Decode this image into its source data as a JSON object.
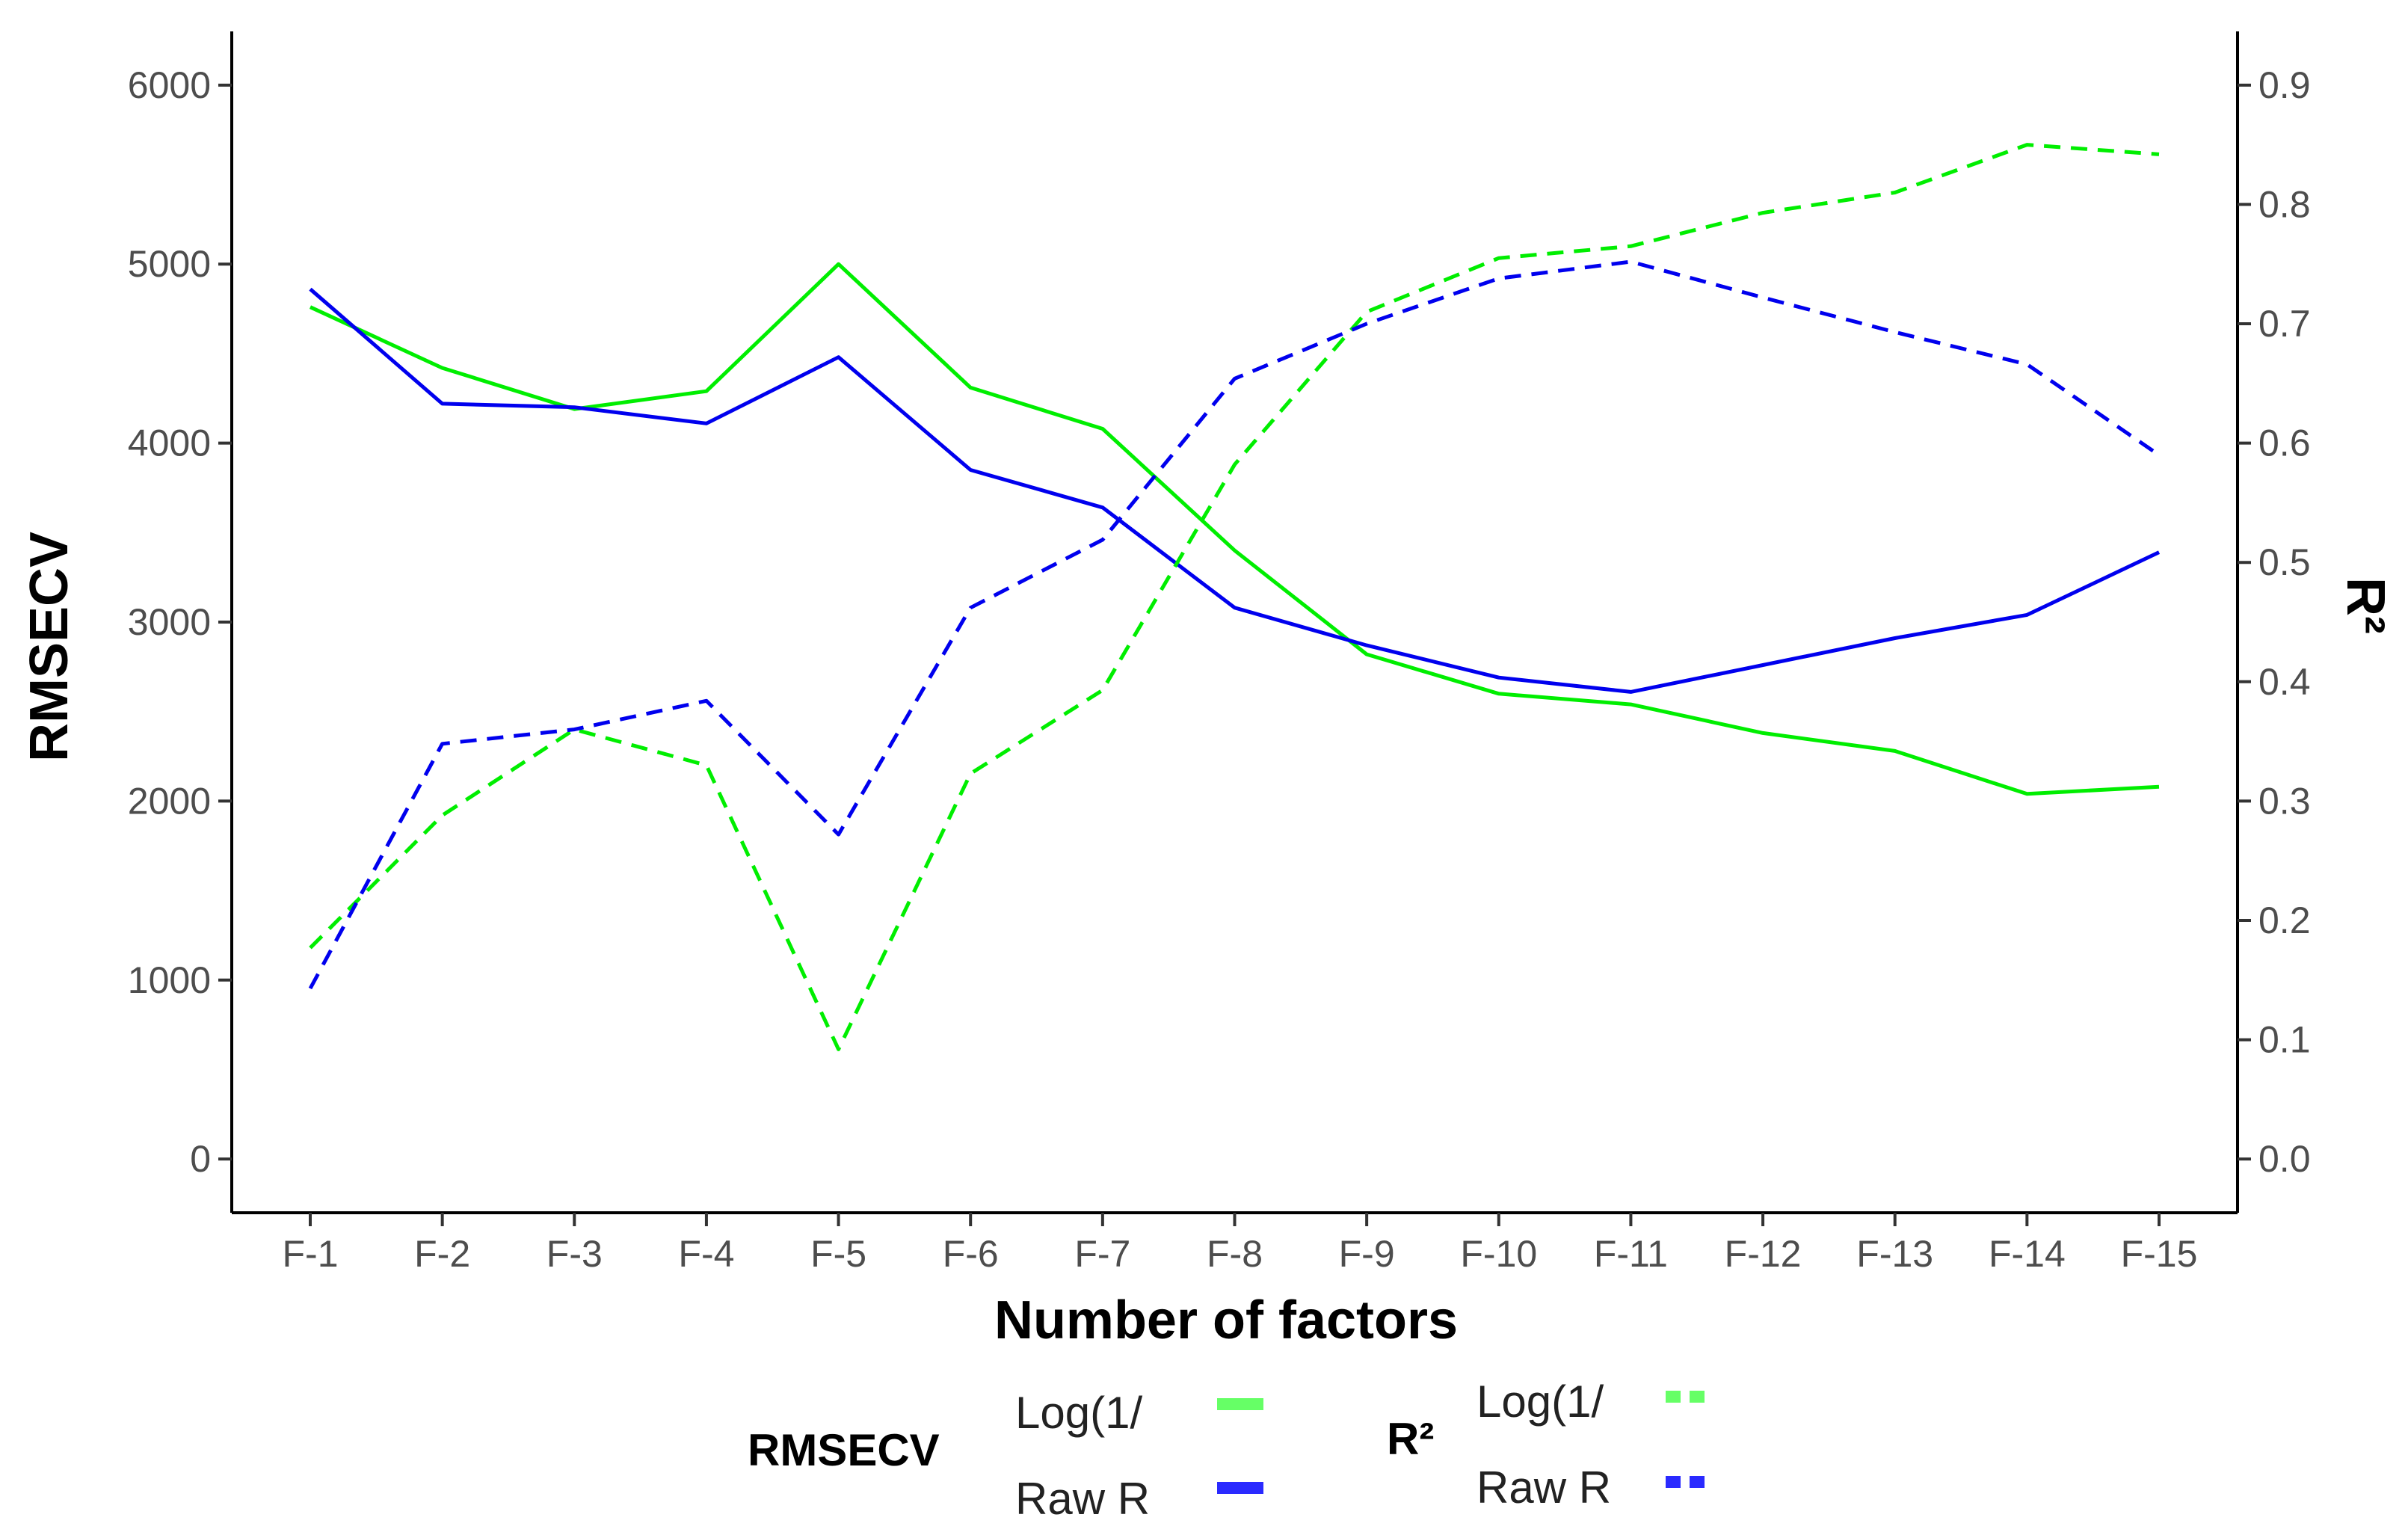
{
  "chart_data": {
    "type": "line",
    "xlabel": "Number of factors",
    "ylabel_left": "RMSECV",
    "ylabel_right": "R²",
    "categories": [
      "F-1",
      "F-2",
      "F-3",
      "F-4",
      "F-5",
      "F-6",
      "F-7",
      "F-8",
      "F-9",
      "F-10",
      "F-11",
      "F-12",
      "F-13",
      "F-14",
      "F-15"
    ],
    "ylim_left": [
      -300,
      6300
    ],
    "yticks_left": [
      0,
      1000,
      2000,
      3000,
      4000,
      5000,
      6000
    ],
    "ylim_right": [
      -0.045,
      0.945
    ],
    "yticks_right": [
      "0.0",
      "0.1",
      "0.2",
      "0.3",
      "0.4",
      "0.5",
      "0.6",
      "0.7",
      "0.8",
      "0.9"
    ],
    "grid": false,
    "series": [
      {
        "name": "Log(1/",
        "group": "RMSECV",
        "axis": "left",
        "style": "solid",
        "color": "#00ee00",
        "values": [
          4760,
          4420,
          4190,
          4290,
          5000,
          4310,
          4080,
          3400,
          2820,
          2600,
          2540,
          2380,
          2280,
          2040,
          2080
        ]
      },
      {
        "name": "Raw R",
        "group": "RMSECV",
        "axis": "left",
        "style": "solid",
        "color": "#0000ee",
        "values": [
          4860,
          4220,
          4200,
          4110,
          4480,
          3850,
          3640,
          3080,
          2870,
          2690,
          2610,
          2760,
          2910,
          3040,
          3390
        ]
      },
      {
        "name": "Log(1/",
        "group": "R²",
        "axis": "right",
        "style": "dashed",
        "color": "#00ee00",
        "values": [
          0.177,
          0.288,
          0.36,
          0.33,
          0.092,
          0.323,
          0.393,
          0.582,
          0.71,
          0.755,
          0.765,
          0.793,
          0.81,
          0.85,
          0.842
        ]
      },
      {
        "name": "Raw R",
        "group": "R²",
        "axis": "right",
        "style": "dashed",
        "color": "#0000ee",
        "values": [
          0.143,
          0.348,
          0.36,
          0.384,
          0.272,
          0.462,
          0.519,
          0.654,
          0.7,
          0.738,
          0.752,
          0.722,
          0.693,
          0.666,
          0.59
        ]
      }
    ],
    "legend": {
      "position": "bottom",
      "groups": [
        {
          "title": "RMSECV",
          "entries": [
            {
              "label": "Log(1/",
              "color": "#66ff66",
              "style": "solid"
            },
            {
              "label": "Raw R",
              "color": "#2a2aff",
              "style": "solid"
            }
          ]
        },
        {
          "title": "R²",
          "entries": [
            {
              "label": "Log(1/",
              "color": "#66ff66",
              "style": "dashed"
            },
            {
              "label": "Raw R",
              "color": "#2a2aff",
              "style": "dashed"
            }
          ]
        }
      ]
    }
  }
}
